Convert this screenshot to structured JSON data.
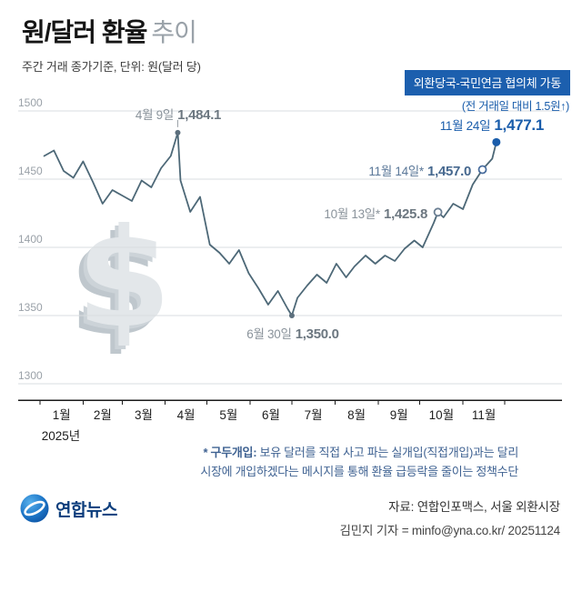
{
  "header": {
    "title_main": "원/달러 환율",
    "title_sub": "추이",
    "subtitle": "주간 거래 종가기준, 단위: 원(달러 당)"
  },
  "badge": {
    "label": "외환당국-국민연금 협의체 가동"
  },
  "delta_note": "(전 거래일 대비 1.5원↑)",
  "chart_data": {
    "type": "line",
    "title": "원/달러 환율 추이",
    "ylabel": "원(달러 당)",
    "ylim": [
      1300,
      1500
    ],
    "yticks": [
      1500,
      1450,
      1400,
      1350,
      1300
    ],
    "x_months": [
      "1월",
      "2월",
      "3월",
      "4월",
      "5월",
      "6월",
      "7월",
      "8월",
      "9월",
      "10월",
      "11월"
    ],
    "year_label": "2025년",
    "legend": "주간 거래 종가",
    "series": [
      {
        "name": "주간 종가",
        "days": [
          3,
          10,
          17,
          24,
          31,
          38,
          45,
          52,
          59,
          66,
          73,
          80,
          87,
          94,
          99,
          101,
          108,
          115,
          122,
          129,
          136,
          143,
          150,
          157,
          164,
          171,
          178,
          181,
          185,
          192,
          199,
          206,
          213,
          220,
          226,
          234,
          241,
          248,
          255,
          262,
          269,
          275,
          283,
          286,
          290,
          297,
          304,
          311,
          318,
          325,
          328
        ],
        "values": [
          1467,
          1471,
          1456,
          1451,
          1463,
          1448,
          1432,
          1442,
          1438,
          1434,
          1449,
          1444,
          1458,
          1467,
          1484.1,
          1449,
          1426,
          1437,
          1402,
          1396,
          1388,
          1398,
          1381,
          1370,
          1358,
          1368,
          1355,
          1350,
          1363,
          1372,
          1380,
          1374,
          1388,
          1378,
          1386,
          1394,
          1388,
          1394,
          1390,
          1399,
          1405,
          1400,
          1418,
          1425.8,
          1422,
          1432,
          1428,
          1446,
          1457,
          1465,
          1477.1
        ]
      }
    ],
    "key_points": [
      {
        "id": "peak",
        "label": "4월 9일",
        "value_label": "1,484.1",
        "day": 99,
        "value": 1484.1,
        "marker": "dot",
        "color": "#5c6f7d",
        "connector": "up"
      },
      {
        "id": "trough",
        "label": "6월 30일",
        "value_label": "1,350.0",
        "day": 181,
        "value": 1350.0,
        "marker": "dot",
        "color": "#5c6f7d",
        "connector": "none"
      },
      {
        "id": "oct13",
        "label": "10월 13일*",
        "value_label": "1,425.8",
        "day": 286,
        "value": 1425.8,
        "marker": "ring",
        "color": "#6b7f93",
        "connector": "none"
      },
      {
        "id": "nov14",
        "label": "11월 14일*",
        "value_label": "1,457.0",
        "day": 318,
        "value": 1457.0,
        "marker": "ring",
        "color": "#4a6e9e",
        "connector": "none"
      },
      {
        "id": "latest",
        "label": "11월 24일",
        "value_label": "1,477.1",
        "day": 328,
        "value": 1477.1,
        "marker": "dot-accent",
        "color": "#1a5dab",
        "connector": "none"
      }
    ],
    "colors": {
      "line": "#4d6877",
      "accent": "#1a5dab",
      "grid": "#d9dde0",
      "badge_bg": "#1c5fae",
      "axis": "#1a1a1a"
    }
  },
  "watermark": "$",
  "footnote": {
    "term": "* 구두개입:",
    "line1_rest": " 보유 달러를 직접 사고 파는 실개입(직접개입)과는 달리",
    "line2": "시장에 개입하겠다는 메시지를 통해 환율 급등락을 줄이는 정책수단"
  },
  "source": "자료: 연합인포맥스, 서울 외환시장",
  "byline": "김민지 기자 = minfo@yna.co.kr/ 20251124",
  "logo": {
    "name": "연합뉴스"
  }
}
